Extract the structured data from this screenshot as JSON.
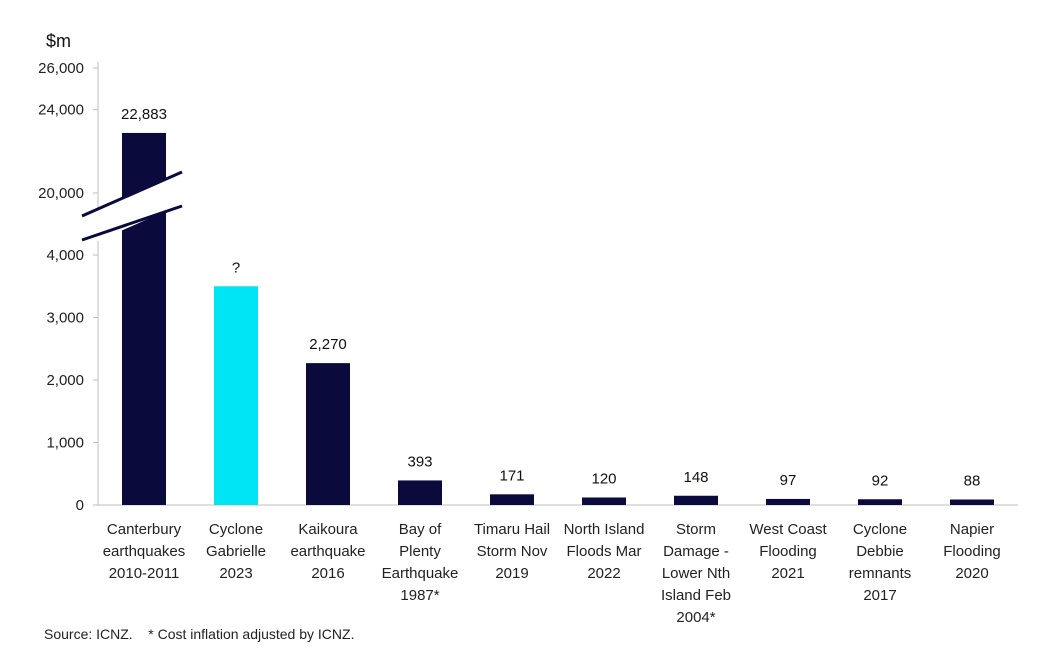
{
  "chart_data": {
    "type": "bar",
    "unit_label": "$m",
    "categories": [
      [
        "Canterbury",
        "earthquakes",
        "2010-2011"
      ],
      [
        "Cyclone",
        "Gabrielle",
        "2023"
      ],
      [
        "Kaikoura",
        "earthquake",
        "2016"
      ],
      [
        "Bay of",
        "Plenty",
        "Earthquake",
        "1987*"
      ],
      [
        "Timaru Hail",
        "Storm Nov",
        "2019"
      ],
      [
        "North Island",
        "Floods Mar",
        "2022"
      ],
      [
        "Storm",
        "Damage -",
        "Lower Nth",
        "Island Feb",
        "2004*"
      ],
      [
        "West Coast",
        "Flooding",
        "2021"
      ],
      [
        "Cyclone",
        "Debbie",
        "remnants",
        "2017"
      ],
      [
        "Napier",
        "Flooding",
        "2020"
      ]
    ],
    "values": [
      22883,
      3500,
      2270,
      393,
      171,
      120,
      148,
      97,
      92,
      88
    ],
    "data_labels": [
      "22,883",
      "?",
      "2,270",
      "393",
      "171",
      "120",
      "148",
      "97",
      "92",
      "88"
    ],
    "y_ticks": [
      "0",
      "1,000",
      "2,000",
      "3,000",
      "4,000",
      "20,000",
      "24,000",
      "26,000"
    ],
    "y_axis_break": {
      "lower_max": 4000,
      "upper_min": 20000,
      "upper_max": 26000
    },
    "ylim": [
      0,
      26000
    ],
    "colors": {
      "default": "#0a0a3c",
      "highlight": "#00e5f5",
      "axis": "#bfbfbf",
      "break_line": "#0a0a3c"
    },
    "highlight_index": 1
  },
  "source_note": "Source: ICNZ.    * Cost inflation adjusted by ICNZ."
}
